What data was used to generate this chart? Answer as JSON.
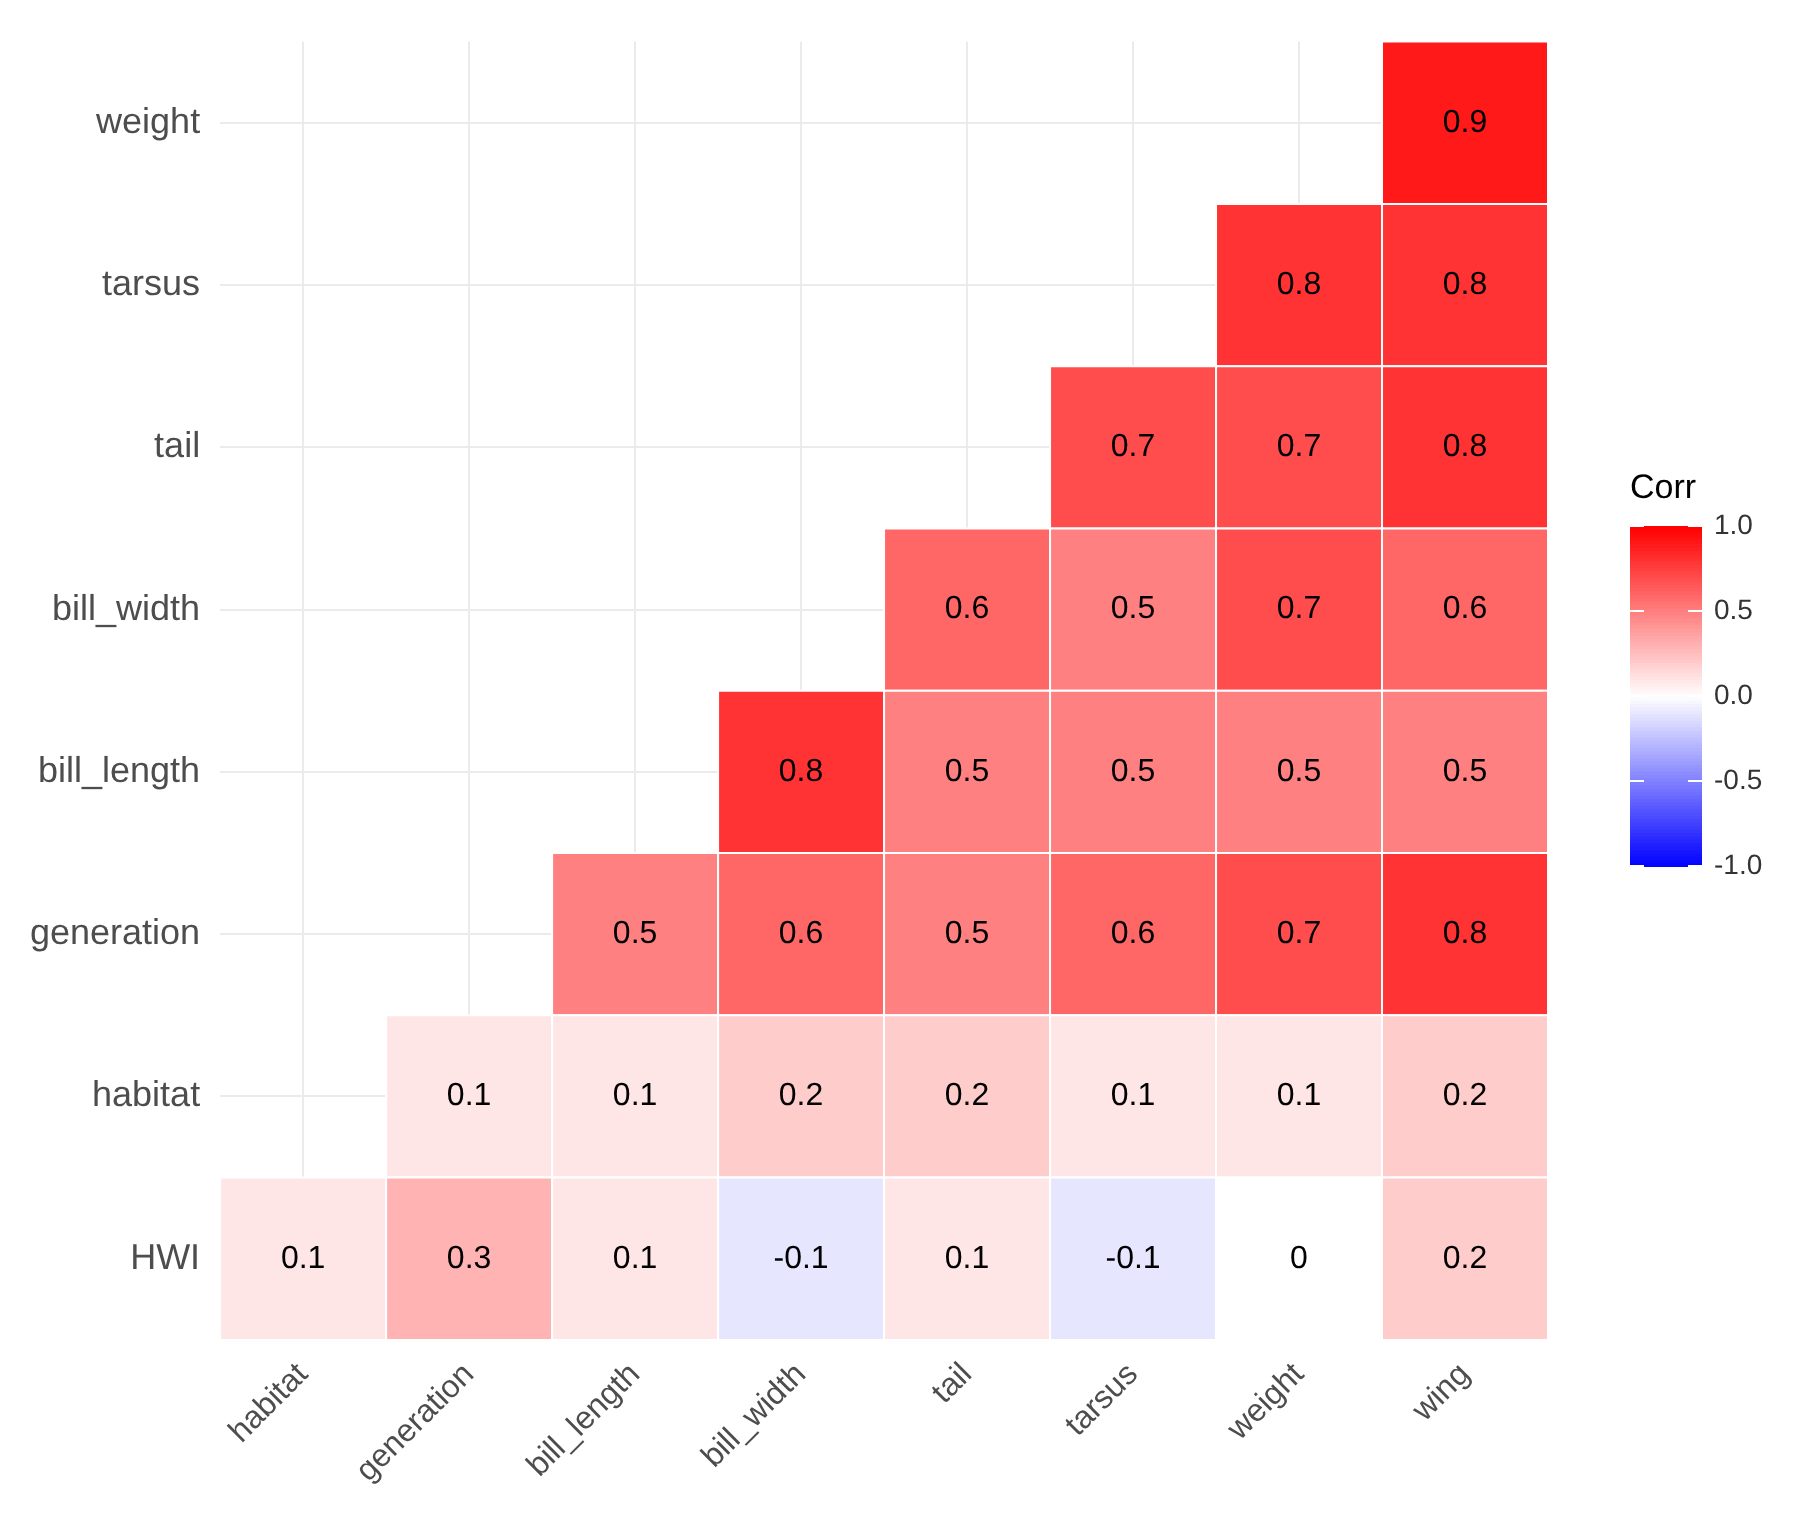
{
  "chart_data": {
    "type": "heatmap",
    "categories": [
      "habitat",
      "generation",
      "bill_length",
      "bill_width",
      "tail",
      "tarsus",
      "weight",
      "wing"
    ],
    "y_categories": [
      "weight",
      "tarsus",
      "tail",
      "bill_width",
      "bill_length",
      "generation",
      "habitat",
      "HWI"
    ],
    "cells": [
      [
        null,
        null,
        null,
        null,
        null,
        null,
        null,
        0.9
      ],
      [
        null,
        null,
        null,
        null,
        null,
        null,
        0.8,
        0.8
      ],
      [
        null,
        null,
        null,
        null,
        null,
        0.7,
        0.7,
        0.8
      ],
      [
        null,
        null,
        null,
        null,
        0.6,
        0.5,
        0.7,
        0.6
      ],
      [
        null,
        null,
        null,
        0.8,
        0.5,
        0.5,
        0.5,
        0.5
      ],
      [
        null,
        null,
        0.5,
        0.6,
        0.5,
        0.6,
        0.7,
        0.8
      ],
      [
        null,
        0.1,
        0.1,
        0.2,
        0.2,
        0.1,
        0.1,
        0.2
      ],
      [
        0.1,
        0.3,
        0.1,
        -0.1,
        0.1,
        -0.1,
        0,
        0.2
      ]
    ],
    "data_labels": true,
    "clabel": "Corr",
    "clim": [
      -1,
      1
    ],
    "cticks": [
      {
        "value": -1,
        "label": "-1.0"
      },
      {
        "value": -0.5,
        "label": "-0.5"
      },
      {
        "value": 0,
        "label": "0.0"
      },
      {
        "value": 0.5,
        "label": "0.5"
      },
      {
        "value": 1,
        "label": "1.0"
      }
    ],
    "grid": true
  }
}
